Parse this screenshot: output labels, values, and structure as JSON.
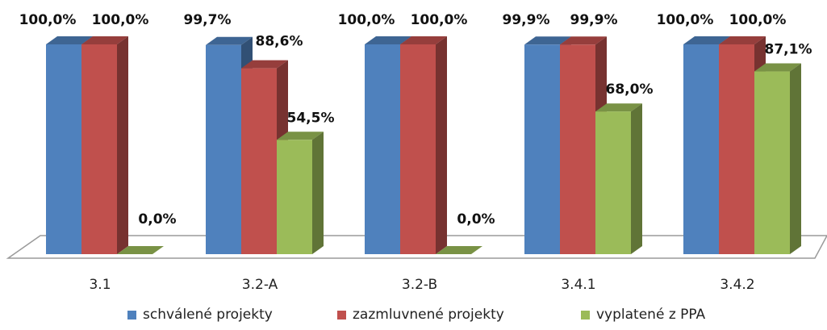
{
  "chart_data": {
    "type": "bar",
    "categories": [
      "3.1",
      "3.2-A",
      "3.2-B",
      "3.4.1",
      "3.4.2"
    ],
    "series": [
      {
        "name": "schválené projekty",
        "color": "#4F81BD",
        "values": [
          100.0,
          99.7,
          100.0,
          99.9,
          100.0
        ],
        "labels": [
          "100,0%",
          "99,7%",
          "100,0%",
          "99,9%",
          "100,0%"
        ]
      },
      {
        "name": "zazmluvnené projekty",
        "color": "#C0504D",
        "values": [
          100.0,
          88.6,
          100.0,
          99.9,
          100.0
        ],
        "labels": [
          "100,0%",
          "88,6%",
          "100,0%",
          "99,9%",
          "100,0%"
        ]
      },
      {
        "name": "vyplatené z PPA",
        "color": "#9BBB59",
        "values": [
          0.0,
          54.5,
          0.0,
          68.0,
          87.1
        ],
        "labels": [
          "0,0%",
          "54,5%",
          "0,0%",
          "68,0%",
          "87,1%"
        ]
      }
    ],
    "ylim": [
      0,
      100
    ],
    "style": "3d-clustered-column",
    "legend_position": "bottom",
    "grid": false
  }
}
